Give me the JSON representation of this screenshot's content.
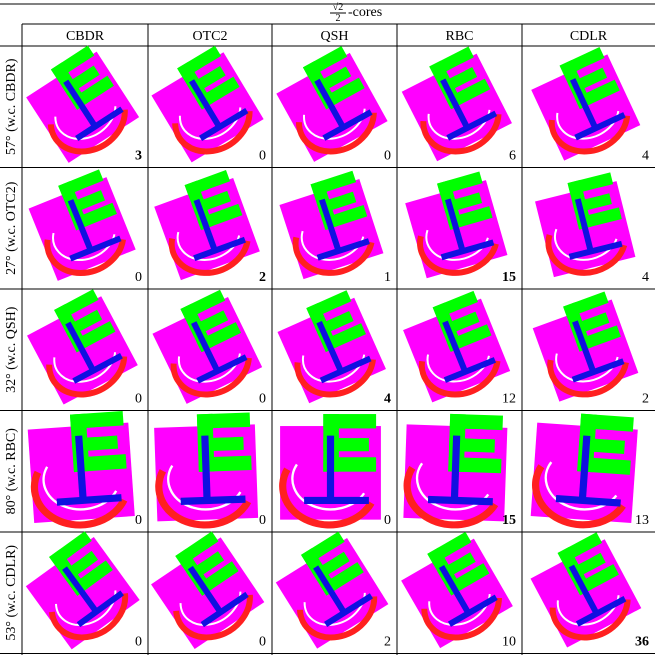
{
  "header": {
    "numerator": "√2",
    "denominator": "2",
    "suffix": "-cores"
  },
  "columns": [
    "CBDR",
    "OTC2",
    "QSH",
    "RBC",
    "CDLR"
  ],
  "rows": [
    {
      "label": "57° (w.c. CBDR)",
      "cells": [
        {
          "value": 3,
          "bold": true
        },
        {
          "value": 0,
          "bold": false
        },
        {
          "value": 0,
          "bold": false
        },
        {
          "value": 6,
          "bold": false
        },
        {
          "value": 4,
          "bold": false
        }
      ]
    },
    {
      "label": "27° (w.c. OTC2)",
      "cells": [
        {
          "value": 0,
          "bold": false
        },
        {
          "value": 2,
          "bold": true
        },
        {
          "value": 1,
          "bold": false
        },
        {
          "value": 15,
          "bold": true
        },
        {
          "value": 4,
          "bold": false
        }
      ]
    },
    {
      "label": "32° (w.c. QSH)",
      "cells": [
        {
          "value": 0,
          "bold": false
        },
        {
          "value": 0,
          "bold": false
        },
        {
          "value": 4,
          "bold": true
        },
        {
          "value": 12,
          "bold": false
        },
        {
          "value": 2,
          "bold": false
        }
      ]
    },
    {
      "label": "80° (w.c. RBC)",
      "cells": [
        {
          "value": 0,
          "bold": false
        },
        {
          "value": 0,
          "bold": false
        },
        {
          "value": 0,
          "bold": false
        },
        {
          "value": 15,
          "bold": true
        },
        {
          "value": 13,
          "bold": false
        }
      ]
    },
    {
      "label": "53° (w.c. CDLR)",
      "cells": [
        {
          "value": 0,
          "bold": false
        },
        {
          "value": 0,
          "bold": false
        },
        {
          "value": 2,
          "bold": false
        },
        {
          "value": 10,
          "bold": false
        },
        {
          "value": 36,
          "bold": true
        }
      ]
    }
  ]
}
